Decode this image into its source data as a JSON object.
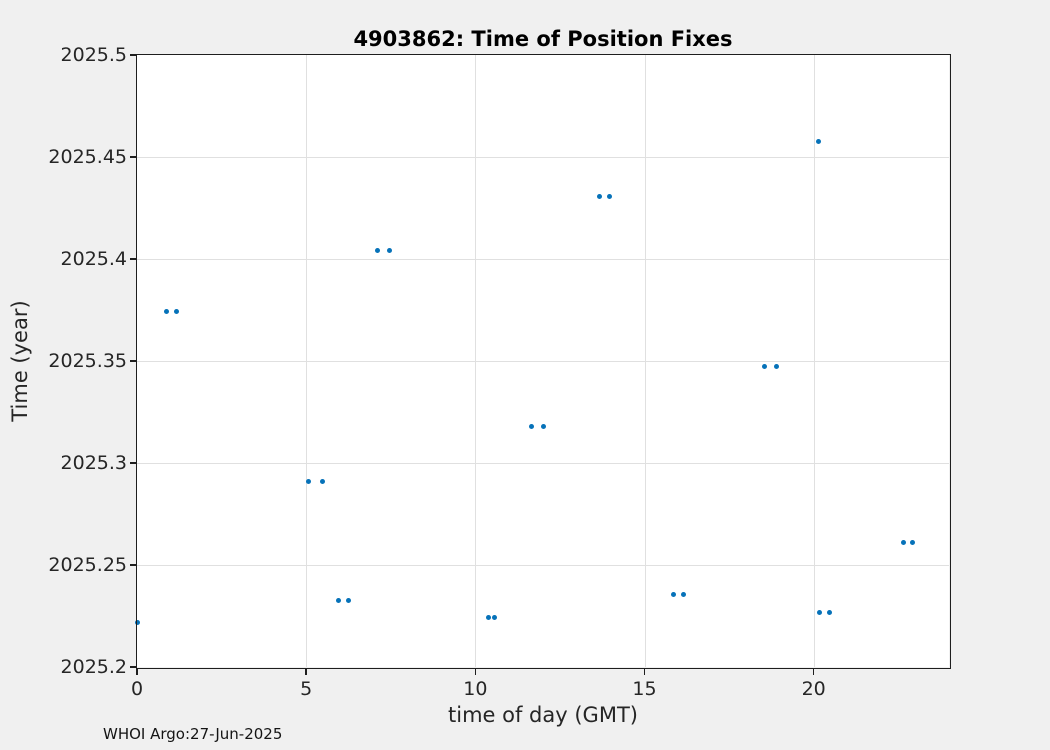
{
  "footer": "WHOI Argo:27-Jun-2025",
  "colors": {
    "figure_background": "#f0f0f0",
    "plot_background": "#ffffff",
    "axis": "#1e1e1e",
    "grid": "#e0e0e0",
    "marker": "#0672b9",
    "text": "#262626"
  },
  "chart_data": {
    "type": "scatter",
    "title": "4903862: Time of Position Fixes",
    "xlabel": "time of day (GMT)",
    "ylabel": "Time (year)",
    "xlim": [
      0,
      24
    ],
    "ylim": [
      2025.2,
      2025.5
    ],
    "grid": true,
    "legend": false,
    "marker_color": "#0672b9",
    "xticks": [
      {
        "value": 0,
        "label": "0"
      },
      {
        "value": 5,
        "label": "5"
      },
      {
        "value": 10,
        "label": "10"
      },
      {
        "value": 15,
        "label": "15"
      },
      {
        "value": 20,
        "label": "20"
      }
    ],
    "yticks": [
      {
        "value": 2025.2,
        "label": "2025.2"
      },
      {
        "value": 2025.25,
        "label": "2025.25"
      },
      {
        "value": 2025.3,
        "label": "2025.3"
      },
      {
        "value": 2025.35,
        "label": "2025.35"
      },
      {
        "value": 2025.4,
        "label": "2025.4"
      },
      {
        "value": 2025.45,
        "label": "2025.45"
      },
      {
        "value": 2025.5,
        "label": "2025.5"
      }
    ],
    "points": [
      [
        0.0,
        2025.2216
      ],
      [
        0.86,
        2025.3745
      ],
      [
        1.18,
        2025.3745
      ],
      [
        5.08,
        2025.2907
      ],
      [
        5.47,
        2025.2907
      ],
      [
        5.97,
        2025.2324
      ],
      [
        6.24,
        2025.2324
      ],
      [
        7.12,
        2025.4044
      ],
      [
        7.45,
        2025.4044
      ],
      [
        10.38,
        2025.2245
      ],
      [
        10.58,
        2025.2245
      ],
      [
        11.65,
        2025.3181
      ],
      [
        12.0,
        2025.3181
      ],
      [
        13.66,
        2025.4304
      ],
      [
        13.98,
        2025.4304
      ],
      [
        15.85,
        2025.2353
      ],
      [
        16.14,
        2025.2353
      ],
      [
        18.54,
        2025.3471
      ],
      [
        18.89,
        2025.3471
      ],
      [
        20.13,
        2025.4578
      ],
      [
        20.16,
        2025.2269
      ],
      [
        20.46,
        2025.2269
      ],
      [
        22.65,
        2025.2608
      ],
      [
        22.92,
        2025.2608
      ]
    ]
  }
}
